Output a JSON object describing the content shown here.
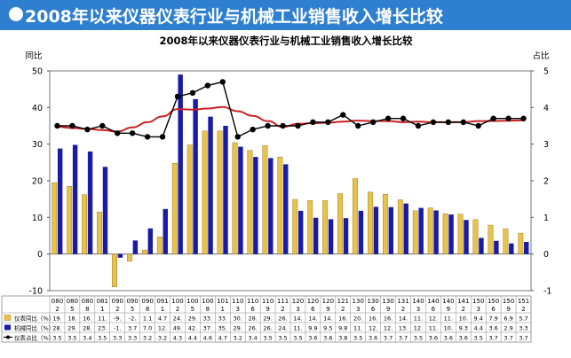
{
  "banner": {
    "title": "2008年以来仪器仪表行业与机械工业销售收入增长比较"
  },
  "colors": {
    "banner_bg": "#2f7fd0",
    "bar1": "#e8c24a",
    "bar1_edge": "#8a6a10",
    "bar2": "#1a1aa8",
    "line": "#000000",
    "trend": "#cc2222"
  },
  "chart_data": {
    "type": "bar",
    "title": "2008年以来仪器仪表行业与机械工业销售收入增长比较",
    "ylabel_left": "同比",
    "ylabel_right": "占比",
    "ylim_left": [
      -10,
      50
    ],
    "ylim_right": [
      -1,
      5
    ],
    "yticks_left": [
      "-10",
      "0",
      "10",
      "20",
      "30",
      "40",
      "50"
    ],
    "yticks_right": [
      "-1",
      "0",
      "1",
      "2",
      "3",
      "4",
      "5"
    ],
    "grid": false,
    "legend_placement": "bottom data table",
    "categories": [
      {
        "top": "080",
        "bot": "2"
      },
      {
        "top": "080",
        "bot": "5"
      },
      {
        "top": "080",
        "bot": "8"
      },
      {
        "top": "081",
        "bot": "1"
      },
      {
        "top": "090",
        "bot": "2"
      },
      {
        "top": "090",
        "bot": "5"
      },
      {
        "top": "090",
        "bot": "8"
      },
      {
        "top": "091",
        "bot": "1"
      },
      {
        "top": "100",
        "bot": "2"
      },
      {
        "top": "100",
        "bot": "5"
      },
      {
        "top": "100",
        "bot": "8"
      },
      {
        "top": "101",
        "bot": "1"
      },
      {
        "top": "110",
        "bot": "3"
      },
      {
        "top": "110",
        "bot": "6"
      },
      {
        "top": "110",
        "bot": "9"
      },
      {
        "top": "111",
        "bot": "2"
      },
      {
        "top": "120",
        "bot": "3"
      },
      {
        "top": "120",
        "bot": "6"
      },
      {
        "top": "120",
        "bot": "9"
      },
      {
        "top": "121",
        "bot": "2"
      },
      {
        "top": "130",
        "bot": "3"
      },
      {
        "top": "130",
        "bot": "6"
      },
      {
        "top": "130",
        "bot": "9"
      },
      {
        "top": "131",
        "bot": "2"
      },
      {
        "top": "140",
        "bot": "3"
      },
      {
        "top": "140",
        "bot": "6"
      },
      {
        "top": "140",
        "bot": "9"
      },
      {
        "top": "141",
        "bot": "2"
      },
      {
        "top": "150",
        "bot": "3"
      },
      {
        "top": "150",
        "bot": "6"
      },
      {
        "top": "150",
        "bot": "9"
      },
      {
        "top": "151",
        "bot": "2"
      }
    ],
    "series": [
      {
        "name": "仪表同比（%）",
        "axis": "left",
        "kind": "bar",
        "values": [
          19.5,
          18.5,
          16.2,
          11.5,
          -9.0,
          -2.0,
          1.1,
          4.7,
          24.8,
          29.8,
          33.6,
          33.6,
          30.4,
          28.3,
          29.6,
          26.5,
          14.9,
          14.6,
          14.6,
          16.5,
          20.6,
          16.9,
          16.3,
          14.8,
          11.8,
          12.6,
          11.0,
          10.9,
          9.4,
          7.9,
          6.9,
          5.7
        ],
        "table_text": [
          "19.",
          "18.",
          "16.",
          "11.",
          "-9.",
          "-2.",
          "1.1",
          "4.7",
          "24.",
          "29.",
          "33.",
          "33.",
          "30.",
          "28.",
          "29.",
          "26.",
          "14.",
          "14.",
          "14.",
          "16.",
          "20.",
          "16.",
          "16.",
          "14.",
          "11.",
          "12.",
          "11.",
          "10.",
          "9.4",
          "7.9",
          "6.9",
          "5.7"
        ]
      },
      {
        "name": "机械同比（%）",
        "axis": "left",
        "kind": "bar",
        "values": [
          28.8,
          29.8,
          28.0,
          23.8,
          -1.0,
          3.7,
          7.0,
          12.3,
          49.0,
          42.3,
          37.5,
          35.0,
          29.3,
          26.5,
          26.2,
          24.5,
          11.8,
          9.9,
          9.5,
          9.8,
          11.8,
          12.9,
          12.8,
          13.8,
          12.6,
          11.9,
          10.8,
          9.3,
          4.4,
          3.6,
          2.9,
          3.3
        ],
        "table_text": [
          "28.",
          "29.",
          "28.",
          "23.",
          "-1.",
          "3.7",
          "7.0",
          "12.",
          "49.",
          "42.",
          "37.",
          "35.",
          "29.",
          "26.",
          "26.",
          "24.",
          "11.",
          "9.9",
          "9.5",
          "9.8",
          "11.",
          "12.",
          "12.",
          "13.",
          "12.",
          "11.",
          "10.",
          "9.3",
          "4.4",
          "3.6",
          "2.9",
          "3.3"
        ]
      },
      {
        "name": "仪表占比（%）",
        "axis": "right",
        "kind": "line",
        "values": [
          3.5,
          3.5,
          3.4,
          3.5,
          3.3,
          3.3,
          3.2,
          3.2,
          4.3,
          4.4,
          4.6,
          4.7,
          3.2,
          3.4,
          3.5,
          3.5,
          3.5,
          3.6,
          3.6,
          3.8,
          3.5,
          3.6,
          3.7,
          3.7,
          3.5,
          3.6,
          3.6,
          3.6,
          3.5,
          3.7,
          3.7,
          3.7
        ],
        "table_text": [
          "3.5",
          "3.5",
          "3.4",
          "3.5",
          "3.3",
          "3.3",
          "3.2",
          "3.2",
          "4.3",
          "4.4",
          "4.6",
          "4.7",
          "3.2",
          "3.4",
          "3.5",
          "3.5",
          "3.5",
          "3.6",
          "3.6",
          "3.8",
          "3.5",
          "3.6",
          "3.7",
          "3.7",
          "3.5",
          "3.6",
          "3.6",
          "3.6",
          "3.5",
          "3.7",
          "3.7",
          "3.7"
        ]
      }
    ]
  }
}
